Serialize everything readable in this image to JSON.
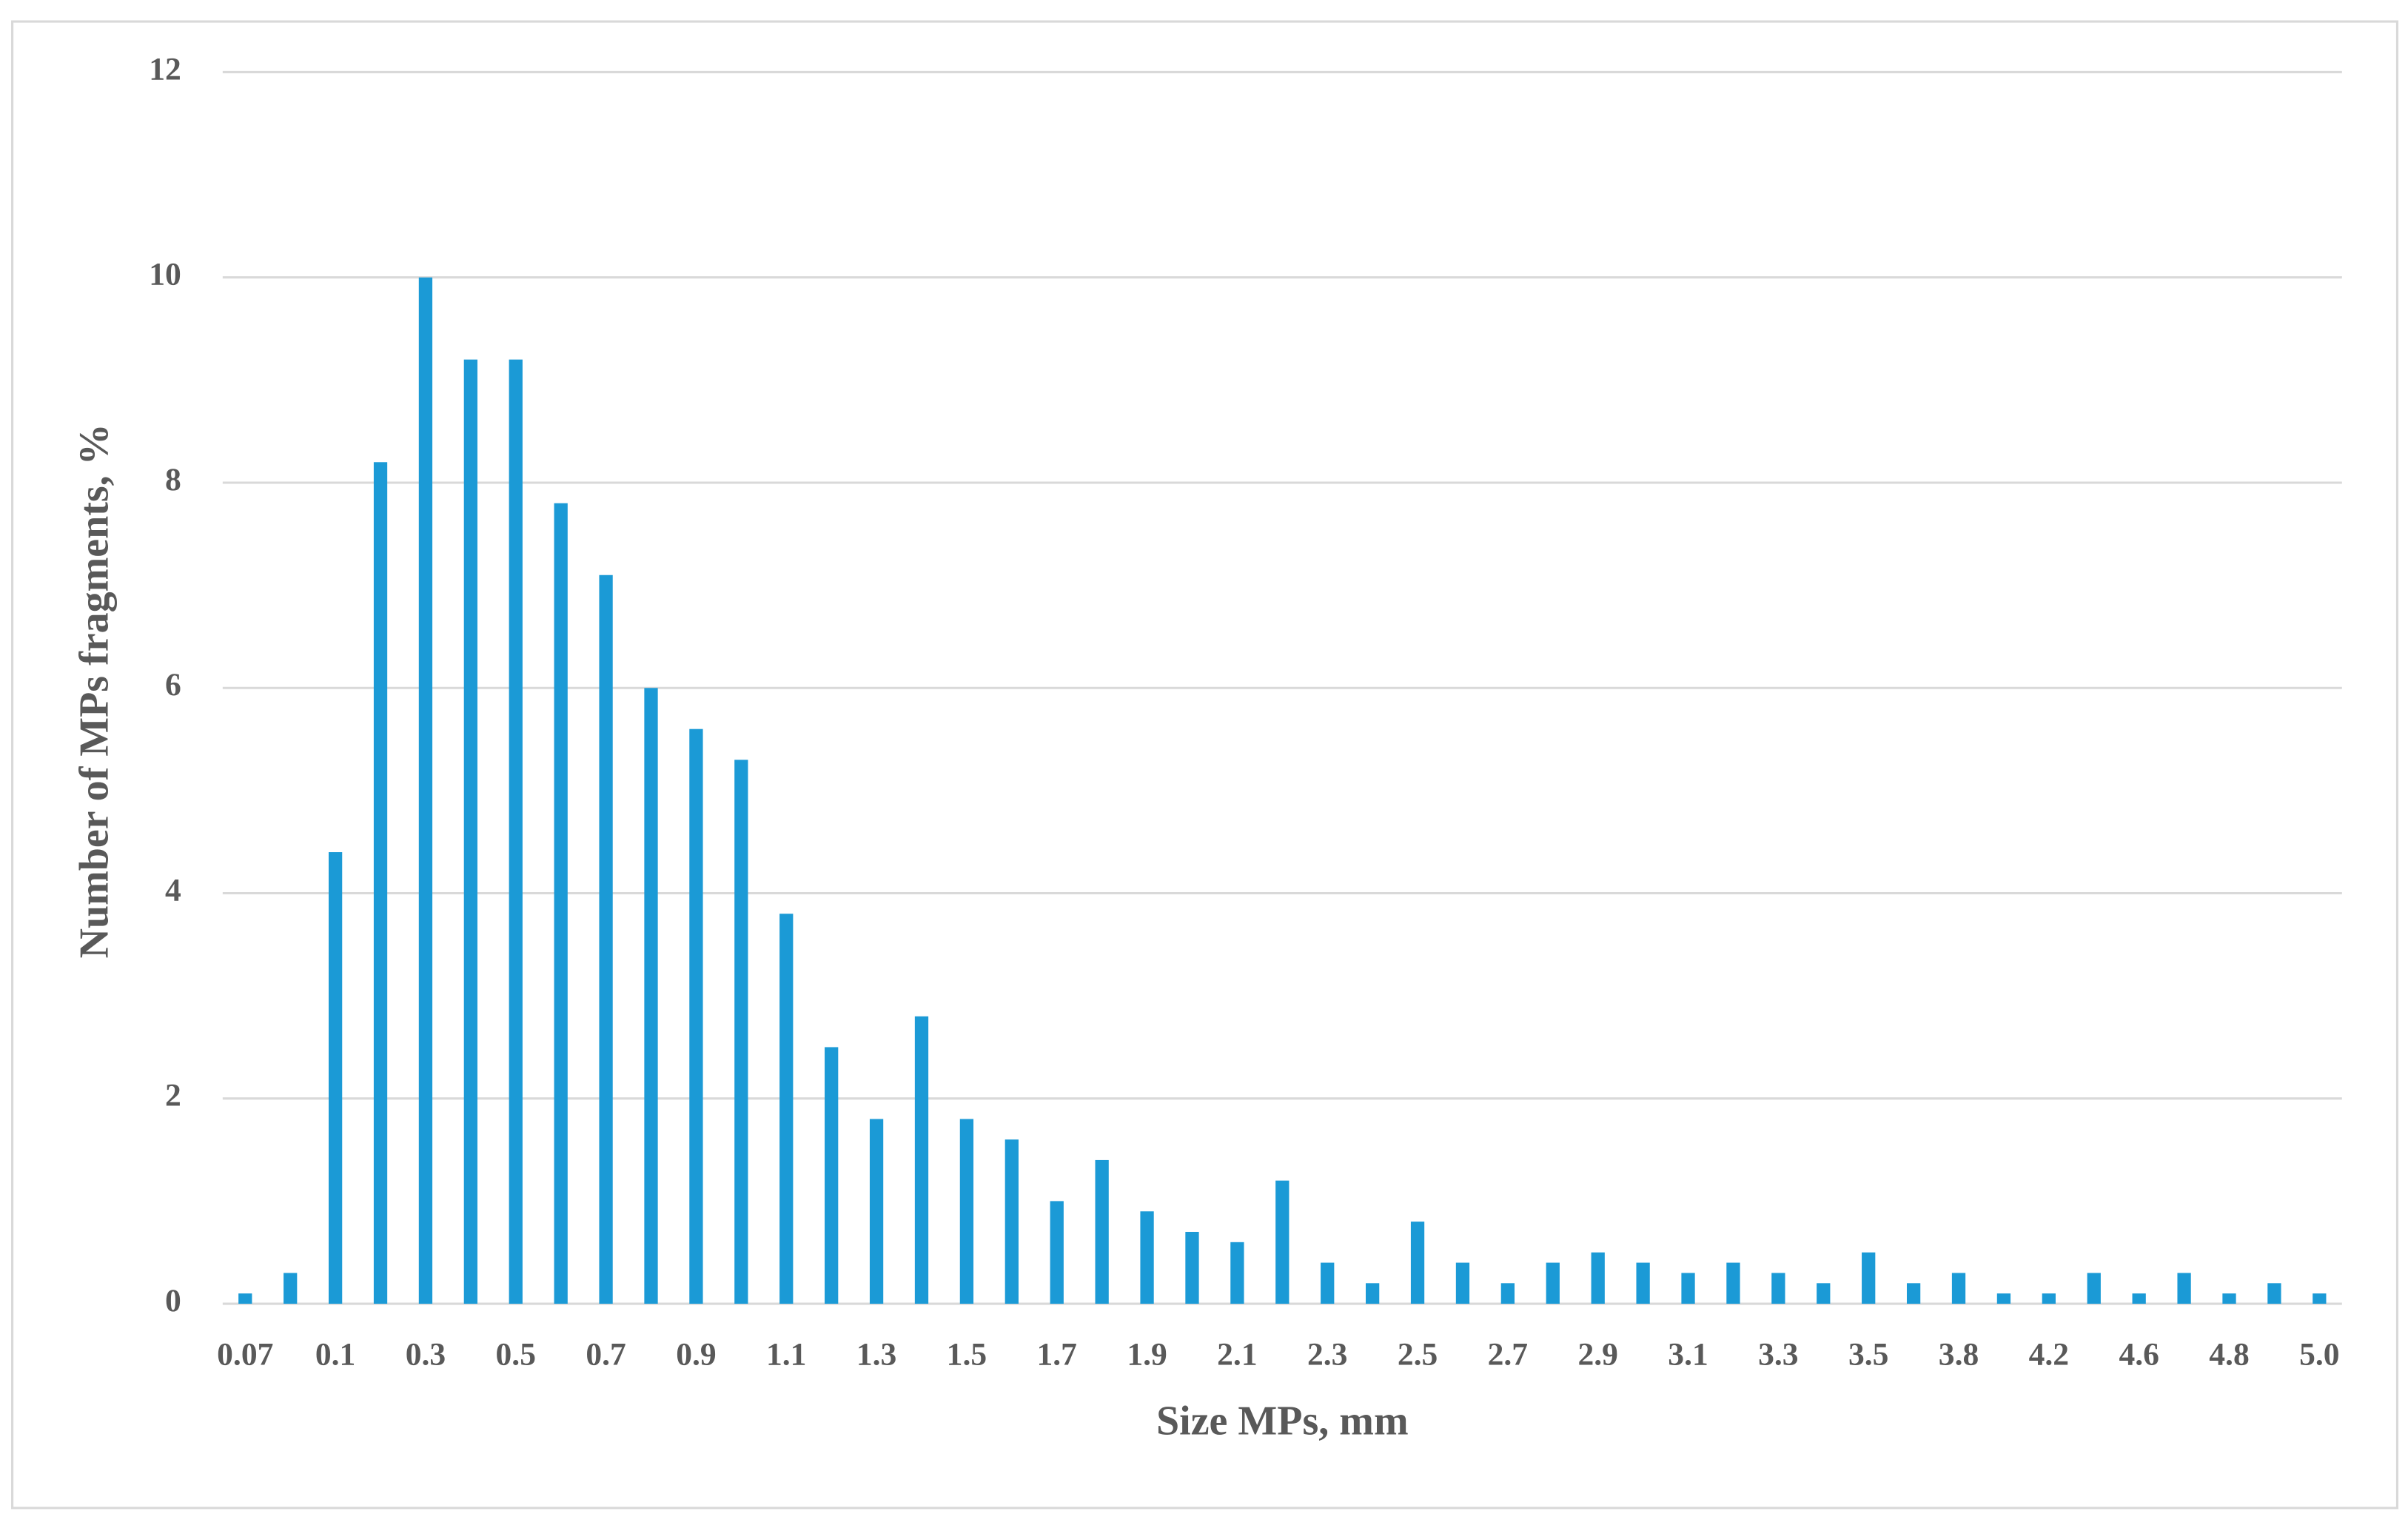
{
  "chart_data": {
    "type": "bar",
    "x_label": "Size MPs, mm",
    "y_label": "Number of MPs fragments, %",
    "categories": [
      "0.07",
      null,
      "0.1",
      null,
      "0.3",
      null,
      "0.5",
      null,
      "0.7",
      null,
      "0.9",
      null,
      "1.1",
      null,
      "1.3",
      null,
      "1.5",
      null,
      "1.7",
      null,
      "1.9",
      null,
      "2.1",
      null,
      "2.3",
      null,
      "2.5",
      null,
      "2.7",
      null,
      "2.9",
      null,
      "3.1",
      null,
      "3.3",
      null,
      "3.5",
      null,
      "3.8",
      null,
      "4.2",
      null,
      "4.6",
      null,
      "4.8",
      null,
      "5.0"
    ],
    "values": [
      0.1,
      0.3,
      4.4,
      8.2,
      10.0,
      9.2,
      9.2,
      7.8,
      7.1,
      6.0,
      5.6,
      5.3,
      3.8,
      2.5,
      1.8,
      2.8,
      1.8,
      1.6,
      1.0,
      1.4,
      0.9,
      0.7,
      0.6,
      1.2,
      0.4,
      0.2,
      0.8,
      0.4,
      0.2,
      0.4,
      0.5,
      0.4,
      0.3,
      0.4,
      0.3,
      0.2,
      0.5,
      0.2,
      0.3,
      0.1,
      0.1,
      0.3,
      0.1,
      0.3,
      0.1,
      0.2,
      0.1
    ],
    "color": "#1b9ad6",
    "ylim": [
      0,
      12
    ],
    "yticks": [
      0,
      2,
      4,
      6,
      8,
      10,
      12
    ],
    "grid": true
  }
}
